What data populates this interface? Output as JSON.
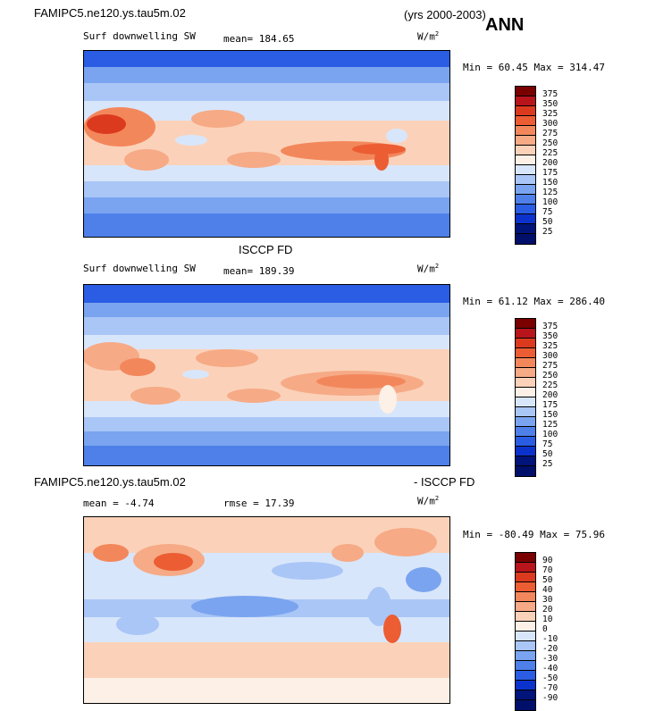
{
  "header": {
    "case_name": "FAMIPC5.ne120.ys.tau5m.02",
    "years": "(yrs 2000-2003)",
    "season": "ANN"
  },
  "panels": [
    {
      "id": "model",
      "title": "",
      "variable": "Surf downwelling SW",
      "stat": "mean= 184.65",
      "units": "W/m",
      "units_sup": "2",
      "minmax": "Min =  60.45 Max = 314.47",
      "colorbar_labels": [
        "375",
        "350",
        "325",
        "300",
        "275",
        "250",
        "225",
        "200",
        "175",
        "150",
        "125",
        "100",
        "75",
        "50",
        "25"
      ]
    },
    {
      "id": "obs",
      "title": "ISCCP FD",
      "variable": "Surf downwelling SW",
      "stat": "mean= 189.39",
      "units": "W/m",
      "units_sup": "2",
      "minmax": "Min =  61.12 Max = 286.40",
      "colorbar_labels": [
        "375",
        "350",
        "325",
        "300",
        "275",
        "250",
        "225",
        "200",
        "175",
        "150",
        "125",
        "100",
        "75",
        "50",
        "25"
      ]
    },
    {
      "id": "diff",
      "title_left": "FAMIPC5.ne120.ys.tau5m.02",
      "title_right": "- ISCCP FD",
      "mean": "mean =  -4.74",
      "rmse": "rmse =  17.39",
      "units": "W/m",
      "units_sup": "2",
      "minmax": "Min = -80.49 Max =  75.96",
      "colorbar_labels": [
        "90",
        "70",
        "50",
        "40",
        "30",
        "20",
        "10",
        "0",
        "-10",
        "-20",
        "-30",
        "-40",
        "-50",
        "-70",
        "-90"
      ]
    }
  ],
  "colors": {
    "abs_scale": [
      "#7a0000",
      "#b8141c",
      "#dc3a1e",
      "#ec5d33",
      "#f3875c",
      "#f6aa86",
      "#fbd2b9",
      "#fdf0e6",
      "#d8e6fb",
      "#a9c6f6",
      "#7aa4ef",
      "#4f80e9",
      "#2a5de3",
      "#0c32cc",
      "#00147a"
    ],
    "diff_scale": [
      "#7a0000",
      "#b8141c",
      "#dc3a1e",
      "#ec5d33",
      "#f3875c",
      "#f6aa86",
      "#fbd2b9",
      "#fdf0e6",
      "#d8e6fb",
      "#a9c6f6",
      "#7aa4ef",
      "#4f80e9",
      "#2a5de3",
      "#0c32cc",
      "#00147a"
    ]
  }
}
